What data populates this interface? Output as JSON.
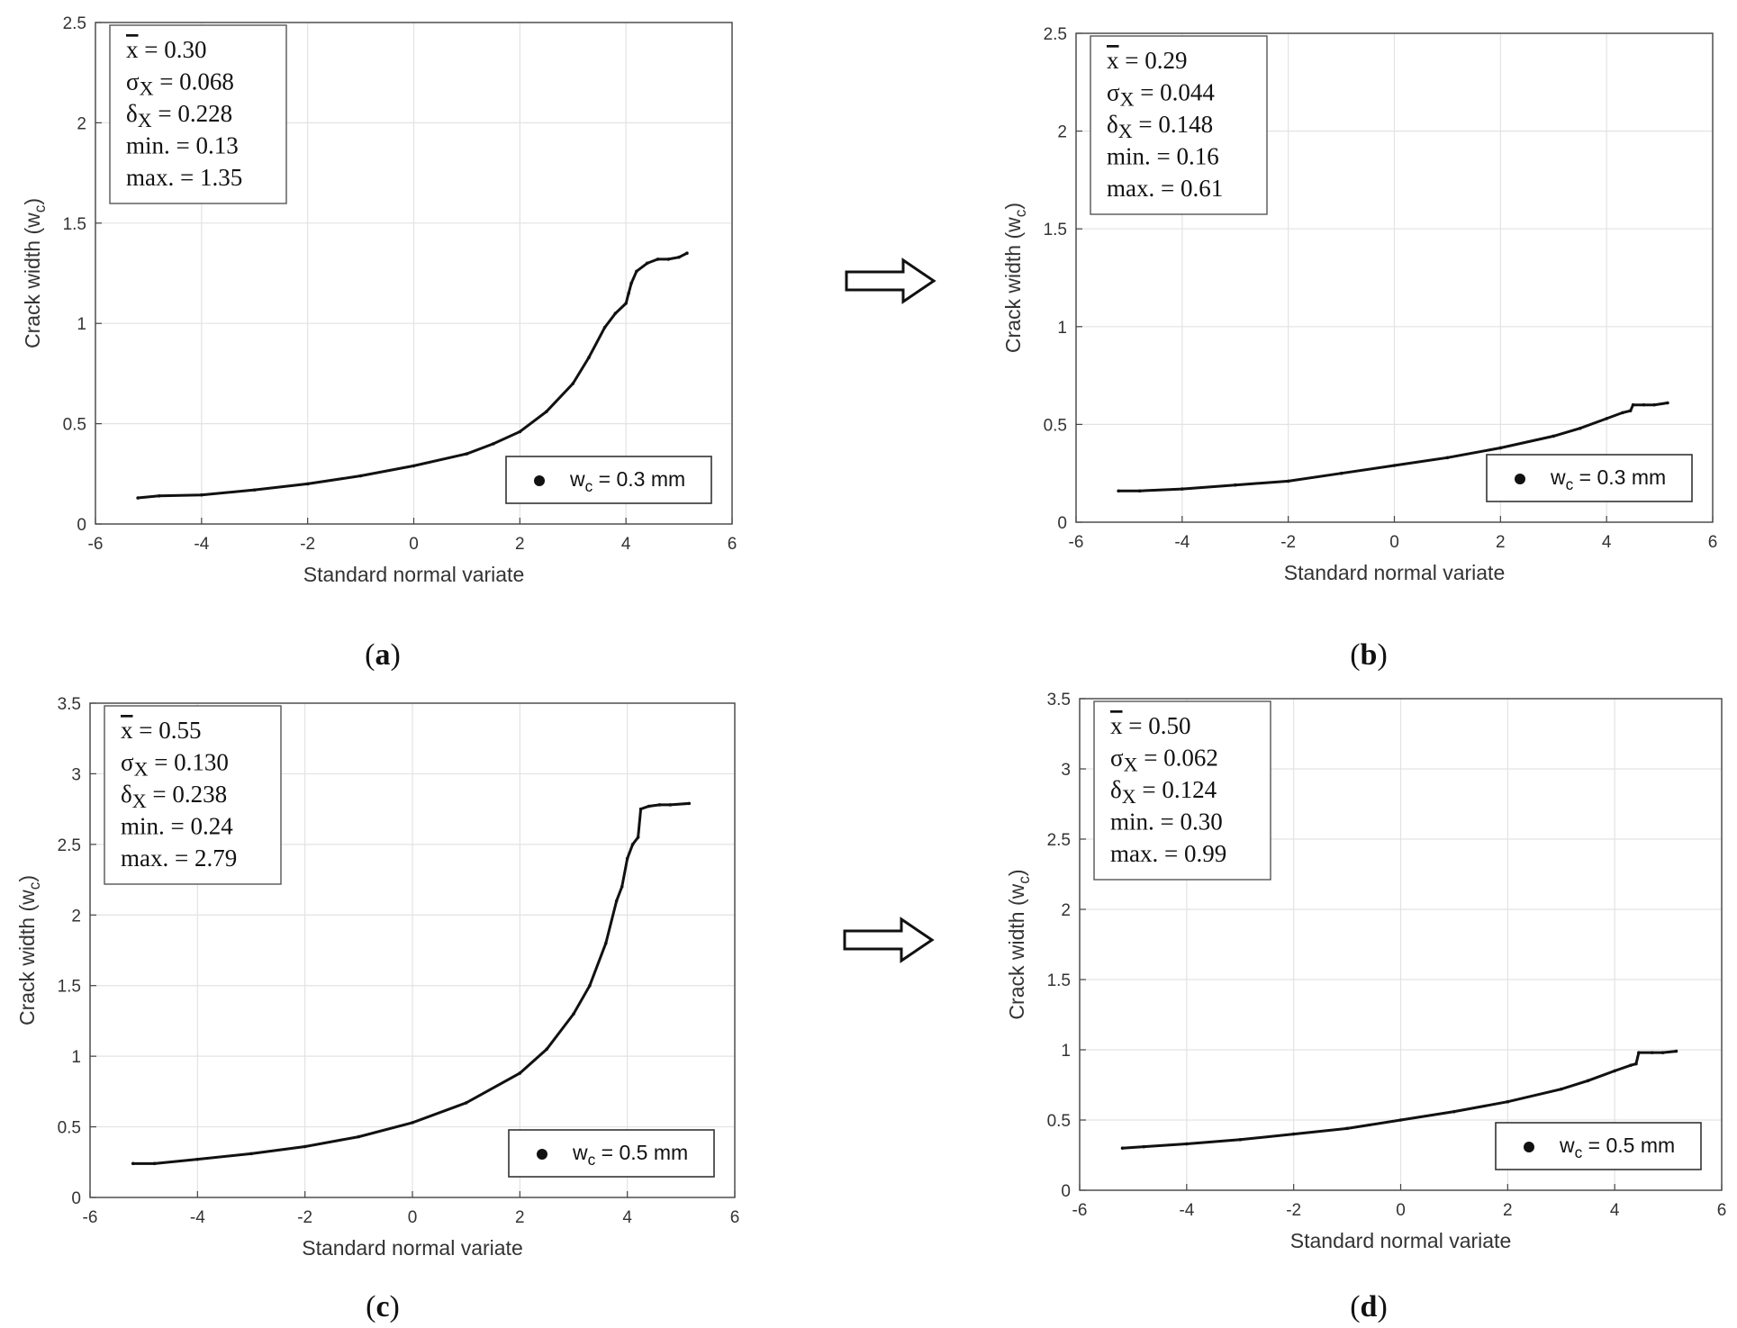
{
  "figure": {
    "arrow_label": "⇒"
  },
  "chart_data": [
    {
      "id": "a",
      "type": "scatter",
      "caption": "a",
      "xlabel": "Standard normal variate",
      "ylabel": "Crack width (w_c)",
      "xlim": [
        -6,
        6
      ],
      "ylim": [
        0,
        2.5
      ],
      "xticks": [
        -6,
        -4,
        -2,
        0,
        2,
        4,
        6
      ],
      "yticks": [
        0,
        0.5,
        1,
        1.5,
        2,
        2.5
      ],
      "grid": true,
      "legend": {
        "label": "w_c = 0.3 mm",
        "position": "bottom-right"
      },
      "stats": {
        "mean": "0.30",
        "sigma": "0.068",
        "delta": "0.228",
        "min": "0.13",
        "max": "1.35"
      },
      "series": [
        {
          "name": "w_c = 0.3 mm",
          "x": [
            -5.2,
            -4.8,
            -4,
            -3,
            -2,
            -1,
            0,
            1,
            1.5,
            2,
            2.5,
            3,
            3.3,
            3.6,
            3.8,
            4.0,
            4.05,
            4.1,
            4.2,
            4.4,
            4.6,
            4.8,
            5.0,
            5.15
          ],
          "y": [
            0.13,
            0.14,
            0.145,
            0.17,
            0.2,
            0.24,
            0.29,
            0.35,
            0.4,
            0.46,
            0.56,
            0.7,
            0.83,
            0.98,
            1.05,
            1.1,
            1.15,
            1.2,
            1.26,
            1.3,
            1.32,
            1.32,
            1.33,
            1.35
          ]
        }
      ]
    },
    {
      "id": "b",
      "type": "scatter",
      "caption": "b",
      "xlabel": "Standard normal variate",
      "ylabel": "Crack width (w_c)",
      "xlim": [
        -6,
        6
      ],
      "ylim": [
        0,
        2.5
      ],
      "xticks": [
        -6,
        -4,
        -2,
        0,
        2,
        4,
        6
      ],
      "yticks": [
        0,
        0.5,
        1,
        1.5,
        2,
        2.5
      ],
      "grid": true,
      "legend": {
        "label": "w_c = 0.3 mm",
        "position": "bottom-right"
      },
      "stats": {
        "mean": "0.29",
        "sigma": "0.044",
        "delta": "0.148",
        "min": "0.16",
        "max": "0.61"
      },
      "series": [
        {
          "name": "w_c = 0.3 mm",
          "x": [
            -5.2,
            -4.8,
            -4,
            -3,
            -2,
            -1,
            0,
            1,
            2,
            3,
            3.5,
            4,
            4.3,
            4.45,
            4.5,
            4.7,
            4.9,
            5.15
          ],
          "y": [
            0.16,
            0.16,
            0.17,
            0.19,
            0.21,
            0.25,
            0.29,
            0.33,
            0.38,
            0.44,
            0.48,
            0.53,
            0.56,
            0.57,
            0.6,
            0.6,
            0.6,
            0.61
          ]
        }
      ]
    },
    {
      "id": "c",
      "type": "scatter",
      "caption": "c",
      "xlabel": "Standard normal variate",
      "ylabel": "Crack width (w_c)",
      "xlim": [
        -6,
        6
      ],
      "ylim": [
        0,
        3.5
      ],
      "xticks": [
        -6,
        -4,
        -2,
        0,
        2,
        4,
        6
      ],
      "yticks": [
        0,
        0.5,
        1,
        1.5,
        2,
        2.5,
        3,
        3.5
      ],
      "grid": true,
      "legend": {
        "label": "w_c = 0.5 mm",
        "position": "bottom-right"
      },
      "stats": {
        "mean": "0.55",
        "sigma": "0.130",
        "delta": "0.238",
        "min": "0.24",
        "max": "2.79"
      },
      "series": [
        {
          "name": "w_c = 0.5 mm",
          "x": [
            -5.2,
            -4.8,
            -4,
            -3,
            -2,
            -1,
            0,
            1,
            2,
            2.5,
            3,
            3.3,
            3.6,
            3.8,
            3.9,
            4.0,
            4.1,
            4.2,
            4.25,
            4.4,
            4.6,
            4.8,
            5.15
          ],
          "y": [
            0.24,
            0.24,
            0.27,
            0.31,
            0.36,
            0.43,
            0.53,
            0.67,
            0.88,
            1.05,
            1.3,
            1.5,
            1.8,
            2.1,
            2.2,
            2.4,
            2.5,
            2.55,
            2.75,
            2.77,
            2.78,
            2.78,
            2.79
          ]
        }
      ]
    },
    {
      "id": "d",
      "type": "scatter",
      "caption": "d",
      "xlabel": "Standard normal variate",
      "ylabel": "Crack width (w_c)",
      "xlim": [
        -6,
        6
      ],
      "ylim": [
        0,
        3.5
      ],
      "xticks": [
        -6,
        -4,
        -2,
        0,
        2,
        4,
        6
      ],
      "yticks": [
        0,
        0.5,
        1,
        1.5,
        2,
        2.5,
        3,
        3.5
      ],
      "grid": true,
      "legend": {
        "label": "w_c = 0.5 mm",
        "position": "bottom-right"
      },
      "stats": {
        "mean": "0.50",
        "sigma": "0.062",
        "delta": "0.124",
        "min": "0.30",
        "max": "0.99"
      },
      "series": [
        {
          "name": "w_c = 0.5 mm",
          "x": [
            -5.2,
            -4.8,
            -4,
            -3,
            -2,
            -1,
            0,
            1,
            2,
            3,
            3.5,
            4,
            4.3,
            4.4,
            4.45,
            4.7,
            4.9,
            5.15
          ],
          "y": [
            0.3,
            0.31,
            0.33,
            0.36,
            0.4,
            0.44,
            0.5,
            0.56,
            0.63,
            0.72,
            0.78,
            0.85,
            0.89,
            0.9,
            0.98,
            0.98,
            0.98,
            0.99
          ]
        }
      ]
    }
  ]
}
